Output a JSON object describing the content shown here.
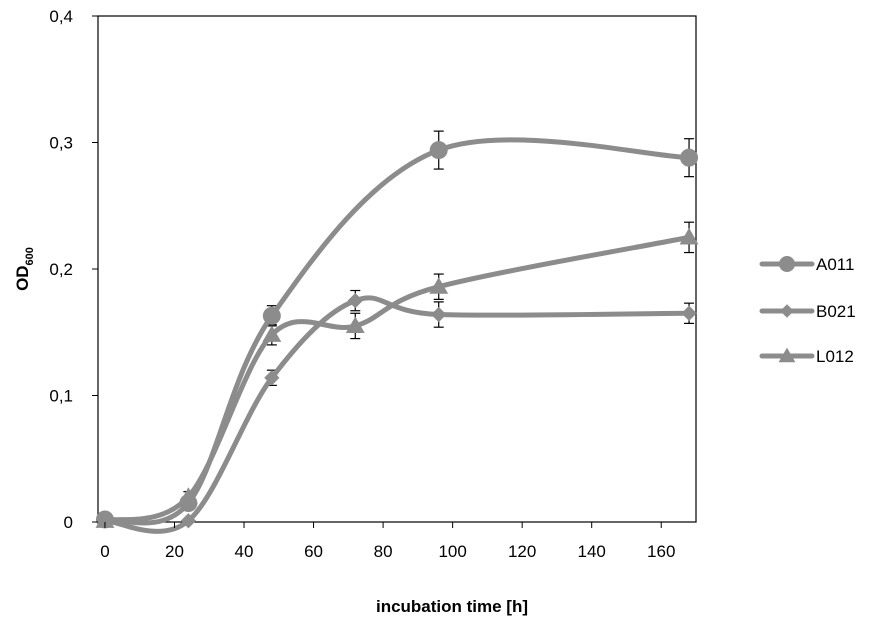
{
  "chart_data": {
    "type": "line",
    "xlabel": "incubation time [h]",
    "ylabel": "OD",
    "ylabel_subscript": "600",
    "xlim": [
      -2,
      170
    ],
    "ylim": [
      0,
      0.4
    ],
    "xticks": [
      0,
      20,
      40,
      60,
      80,
      100,
      120,
      140,
      160
    ],
    "xtick_labels": [
      "0",
      "20",
      "40",
      "60",
      "80",
      "100",
      "120",
      "140",
      "160"
    ],
    "yticks": [
      0,
      0.1,
      0.2,
      0.3,
      0.4
    ],
    "ytick_labels": [
      "0",
      "0,1",
      "0,2",
      "0,3",
      "0,4"
    ],
    "grid": false,
    "legend_position": "right",
    "line_color": "#8c8c8c",
    "series": [
      {
        "name": "A011",
        "marker": "circle",
        "x": [
          0,
          24,
          48,
          96,
          168
        ],
        "y": [
          0.002,
          0.015,
          0.163,
          0.294,
          0.288
        ],
        "err": [
          0.002,
          0.003,
          0.008,
          0.015,
          0.015
        ]
      },
      {
        "name": "B021",
        "marker": "diamond",
        "x": [
          0,
          24,
          48,
          72,
          96,
          168
        ],
        "y": [
          0.001,
          0.001,
          0.114,
          0.175,
          0.164,
          0.165
        ],
        "err": [
          0.001,
          0.001,
          0.006,
          0.008,
          0.01,
          0.008
        ]
      },
      {
        "name": "L012",
        "marker": "triangle",
        "x": [
          0,
          24,
          48,
          72,
          96,
          168
        ],
        "y": [
          0.001,
          0.02,
          0.148,
          0.155,
          0.186,
          0.225
        ],
        "err": [
          0.001,
          0.004,
          0.008,
          0.01,
          0.01,
          0.012
        ]
      }
    ]
  }
}
